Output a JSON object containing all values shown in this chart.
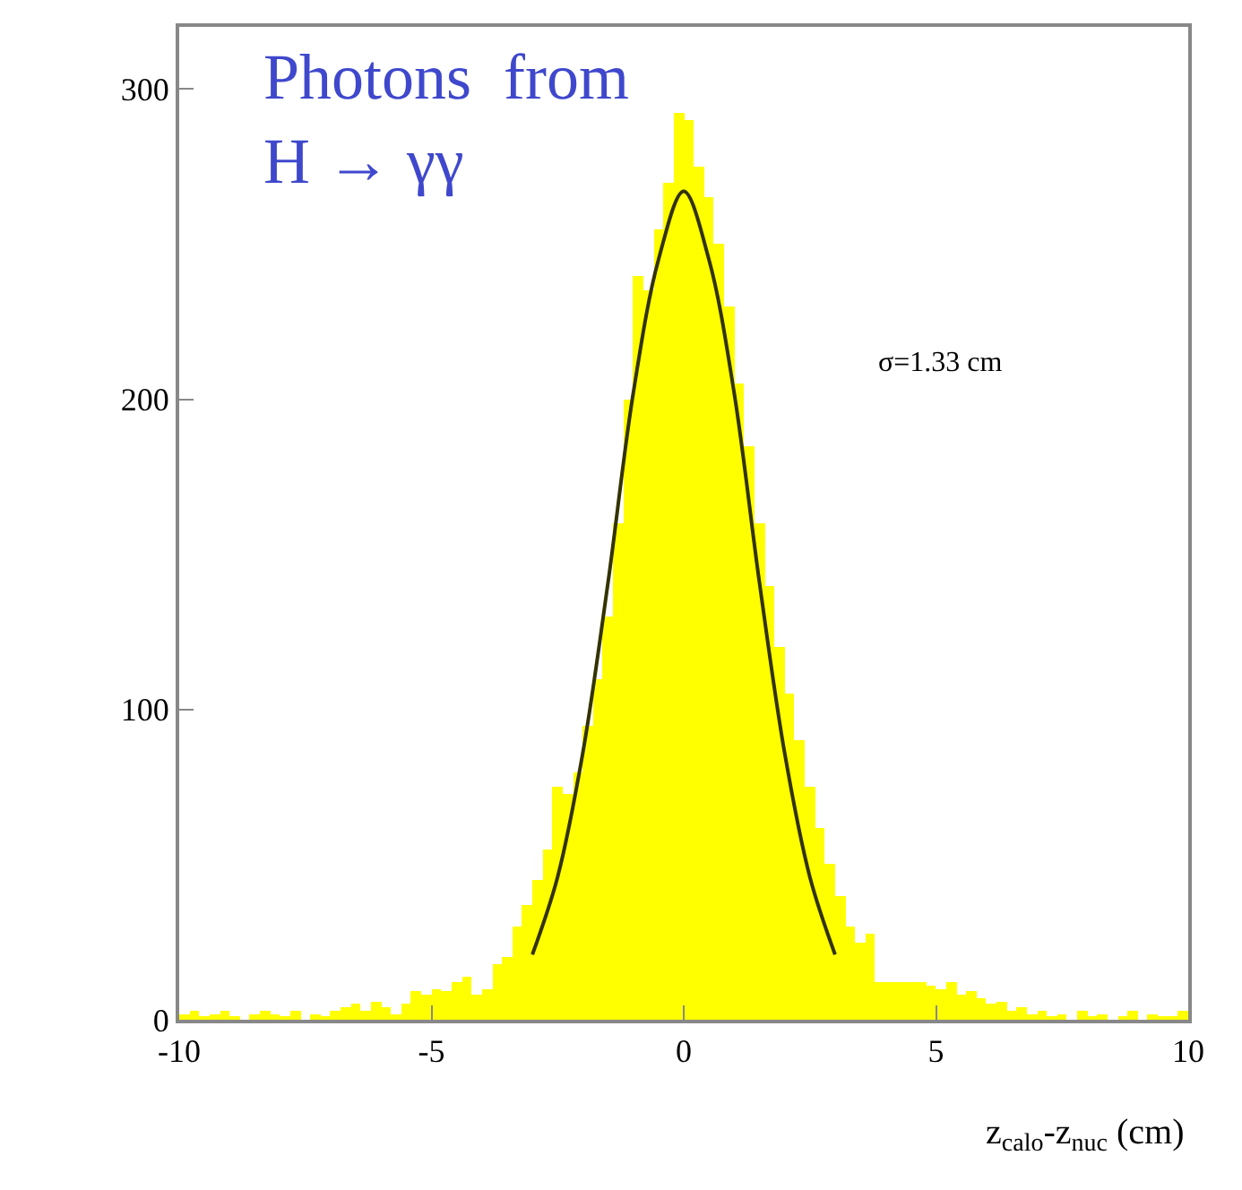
{
  "chart_data": {
    "type": "histogram",
    "xlabel": "z$_{calo}$-z$_{nuc}$ (cm)",
    "annotations": [
      "Photons  from\nH → γγ",
      "σ=1.33 cm"
    ],
    "bins": [
      -10,
      -9.8,
      -9.6,
      -9.4,
      -9.2,
      -9,
      -8.8,
      -8.6,
      -8.4,
      -8.2,
      -8,
      -7.8,
      -7.6,
      -7.4,
      -7.2,
      -7,
      -6.8,
      -6.6,
      -6.4,
      -6.2,
      -6,
      -5.8,
      -5.6,
      -5.4,
      -5.2,
      -5,
      -4.8,
      -4.6,
      -4.4,
      -4.2,
      -4,
      -3.8,
      -3.6,
      -3.4,
      -3.2,
      -3,
      -2.8,
      -2.6,
      -2.4,
      -2.2,
      -2,
      -1.8,
      -1.6,
      -1.4,
      -1.2,
      -1,
      -0.8,
      -0.6,
      -0.4,
      -0.2,
      0,
      0.2,
      0.4,
      0.6,
      0.8,
      1,
      1.2,
      1.4,
      1.6,
      1.8,
      2,
      2.2,
      2.4,
      2.6,
      2.8,
      3,
      3.2,
      3.4,
      3.6,
      3.8,
      4,
      4.2,
      4.4,
      4.6,
      4.8,
      5,
      5.2,
      5.4,
      5.6,
      5.8,
      6,
      6.2,
      6.4,
      6.6,
      6.8,
      7,
      7.2,
      7.4,
      7.6,
      7.8,
      8,
      8.2,
      8.4,
      8.6,
      8.8,
      9,
      9.2,
      9.4,
      9.6,
      9.8,
      10
    ],
    "values": [
      2,
      3,
      1,
      2,
      3,
      1,
      0,
      2,
      3,
      2,
      1,
      3,
      0,
      2,
      1,
      3,
      4,
      5,
      3,
      6,
      4,
      2,
      5,
      9,
      8,
      10,
      9,
      12,
      14,
      8,
      10,
      18,
      20,
      30,
      37,
      45,
      55,
      75,
      73,
      80,
      95,
      110,
      130,
      160,
      200,
      240,
      235,
      255,
      270,
      292,
      290,
      275,
      265,
      250,
      230,
      205,
      185,
      160,
      140,
      120,
      105,
      90,
      75,
      62,
      50,
      40,
      30,
      25,
      28,
      12,
      12,
      12,
      12,
      12,
      11,
      10,
      12,
      8,
      9,
      7,
      5,
      6,
      3,
      4,
      2,
      3,
      1,
      2,
      0,
      3,
      1,
      2,
      0,
      1,
      3,
      0,
      2,
      1,
      1,
      3
    ],
    "color": "#ffff00",
    "series": [
      {
        "type": "line",
        "color": "#333300",
        "x": [
          -3,
          -2.5,
          -2,
          -1.5,
          -1,
          -0.5,
          0,
          0.5,
          1,
          1.5,
          2,
          2.5,
          3
        ],
        "values": [
          21,
          46,
          86,
          141,
          202,
          245,
          267,
          245,
          202,
          141,
          86,
          46,
          21
        ]
      }
    ],
    "xlim": [
      -10,
      10
    ],
    "xticks": [
      -10,
      -5,
      0,
      5,
      10
    ],
    "ylim": [
      0,
      320
    ],
    "yticks": [
      0,
      100,
      200,
      300
    ]
  }
}
